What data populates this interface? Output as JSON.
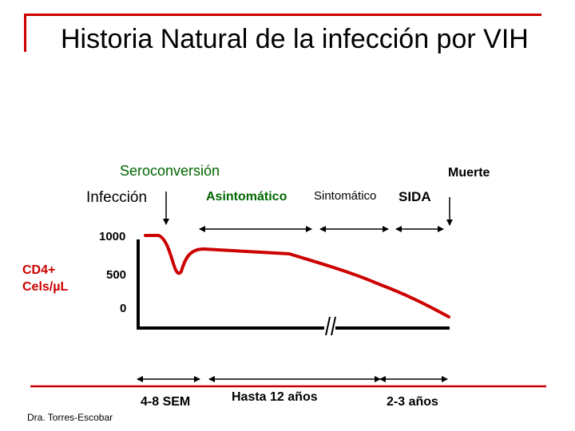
{
  "title": "Historia Natural de la infección por VIH",
  "labels": {
    "seroconversion": "Seroconversión",
    "muerte": "Muerte",
    "infeccion": "Infección",
    "asintomatico": "Asintomático",
    "sintomatico": "Sintomático",
    "sida": "SIDA",
    "y_tick_1000": "1000",
    "y_tick_500": "500",
    "y_tick_0": "0",
    "cd4_line1": "CD4+",
    "cd4_line2": "Cels/µL",
    "duration_1": "4-8 SEM",
    "duration_2": "Hasta 12 años",
    "duration_3": "2-3 años",
    "author": "Dra. Torres-Escobar"
  },
  "colors": {
    "accent_red": "#cc0000",
    "green_text": "#006600",
    "axis_black": "#000000"
  }
}
